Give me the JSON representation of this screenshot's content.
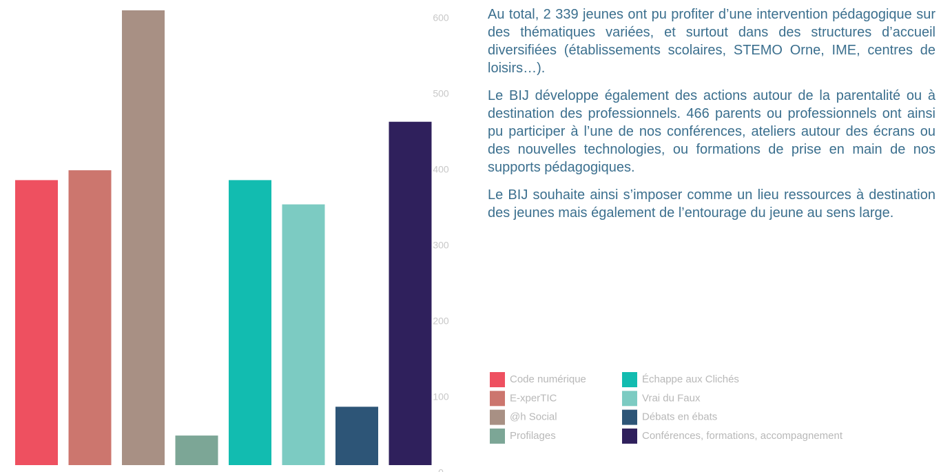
{
  "chart_data": {
    "type": "bar",
    "categories": [
      "Code numérique",
      "E-xperTIC",
      "@h Social",
      "Profilages",
      "Échappe aux Clichés",
      "Vrai du Faux",
      "Débats en ébats",
      "Conférences, formations, accompagnement"
    ],
    "values": [
      376,
      389,
      600,
      39,
      376,
      344,
      77,
      453
    ],
    "colors": [
      "#ee5060",
      "#cc766e",
      "#a89084",
      "#7ca696",
      "#12bcb0",
      "#7ccbc2",
      "#2d5577",
      "#2f205c"
    ],
    "ylim": [
      0,
      600
    ],
    "yticks": [
      0,
      100,
      200,
      300,
      400,
      500,
      600
    ],
    "grid": false,
    "legend": "bottom-right"
  },
  "text": {
    "paragraphs": [
      "Au total, 2 339 jeunes ont pu profiter d’une intervention pédagogique sur des thématiques variées, et surtout dans des structures d’accueil diversifiées (établissements scolaires, STEMO Orne, IME, centres de loisirs…).",
      "Le BIJ développe également des actions autour de la parentalité ou à destination des professionnels. 466 parents ou professionnels ont ainsi pu participer à l’une de nos conférences, ateliers autour des écrans ou des nouvelles technologies, ou formations de prise en main de nos supports pédagogiques.",
      "Le BIJ souhaite ainsi s’imposer comme un lieu ressources à destination des jeunes mais également de l’entourage du jeune au sens large."
    ]
  }
}
